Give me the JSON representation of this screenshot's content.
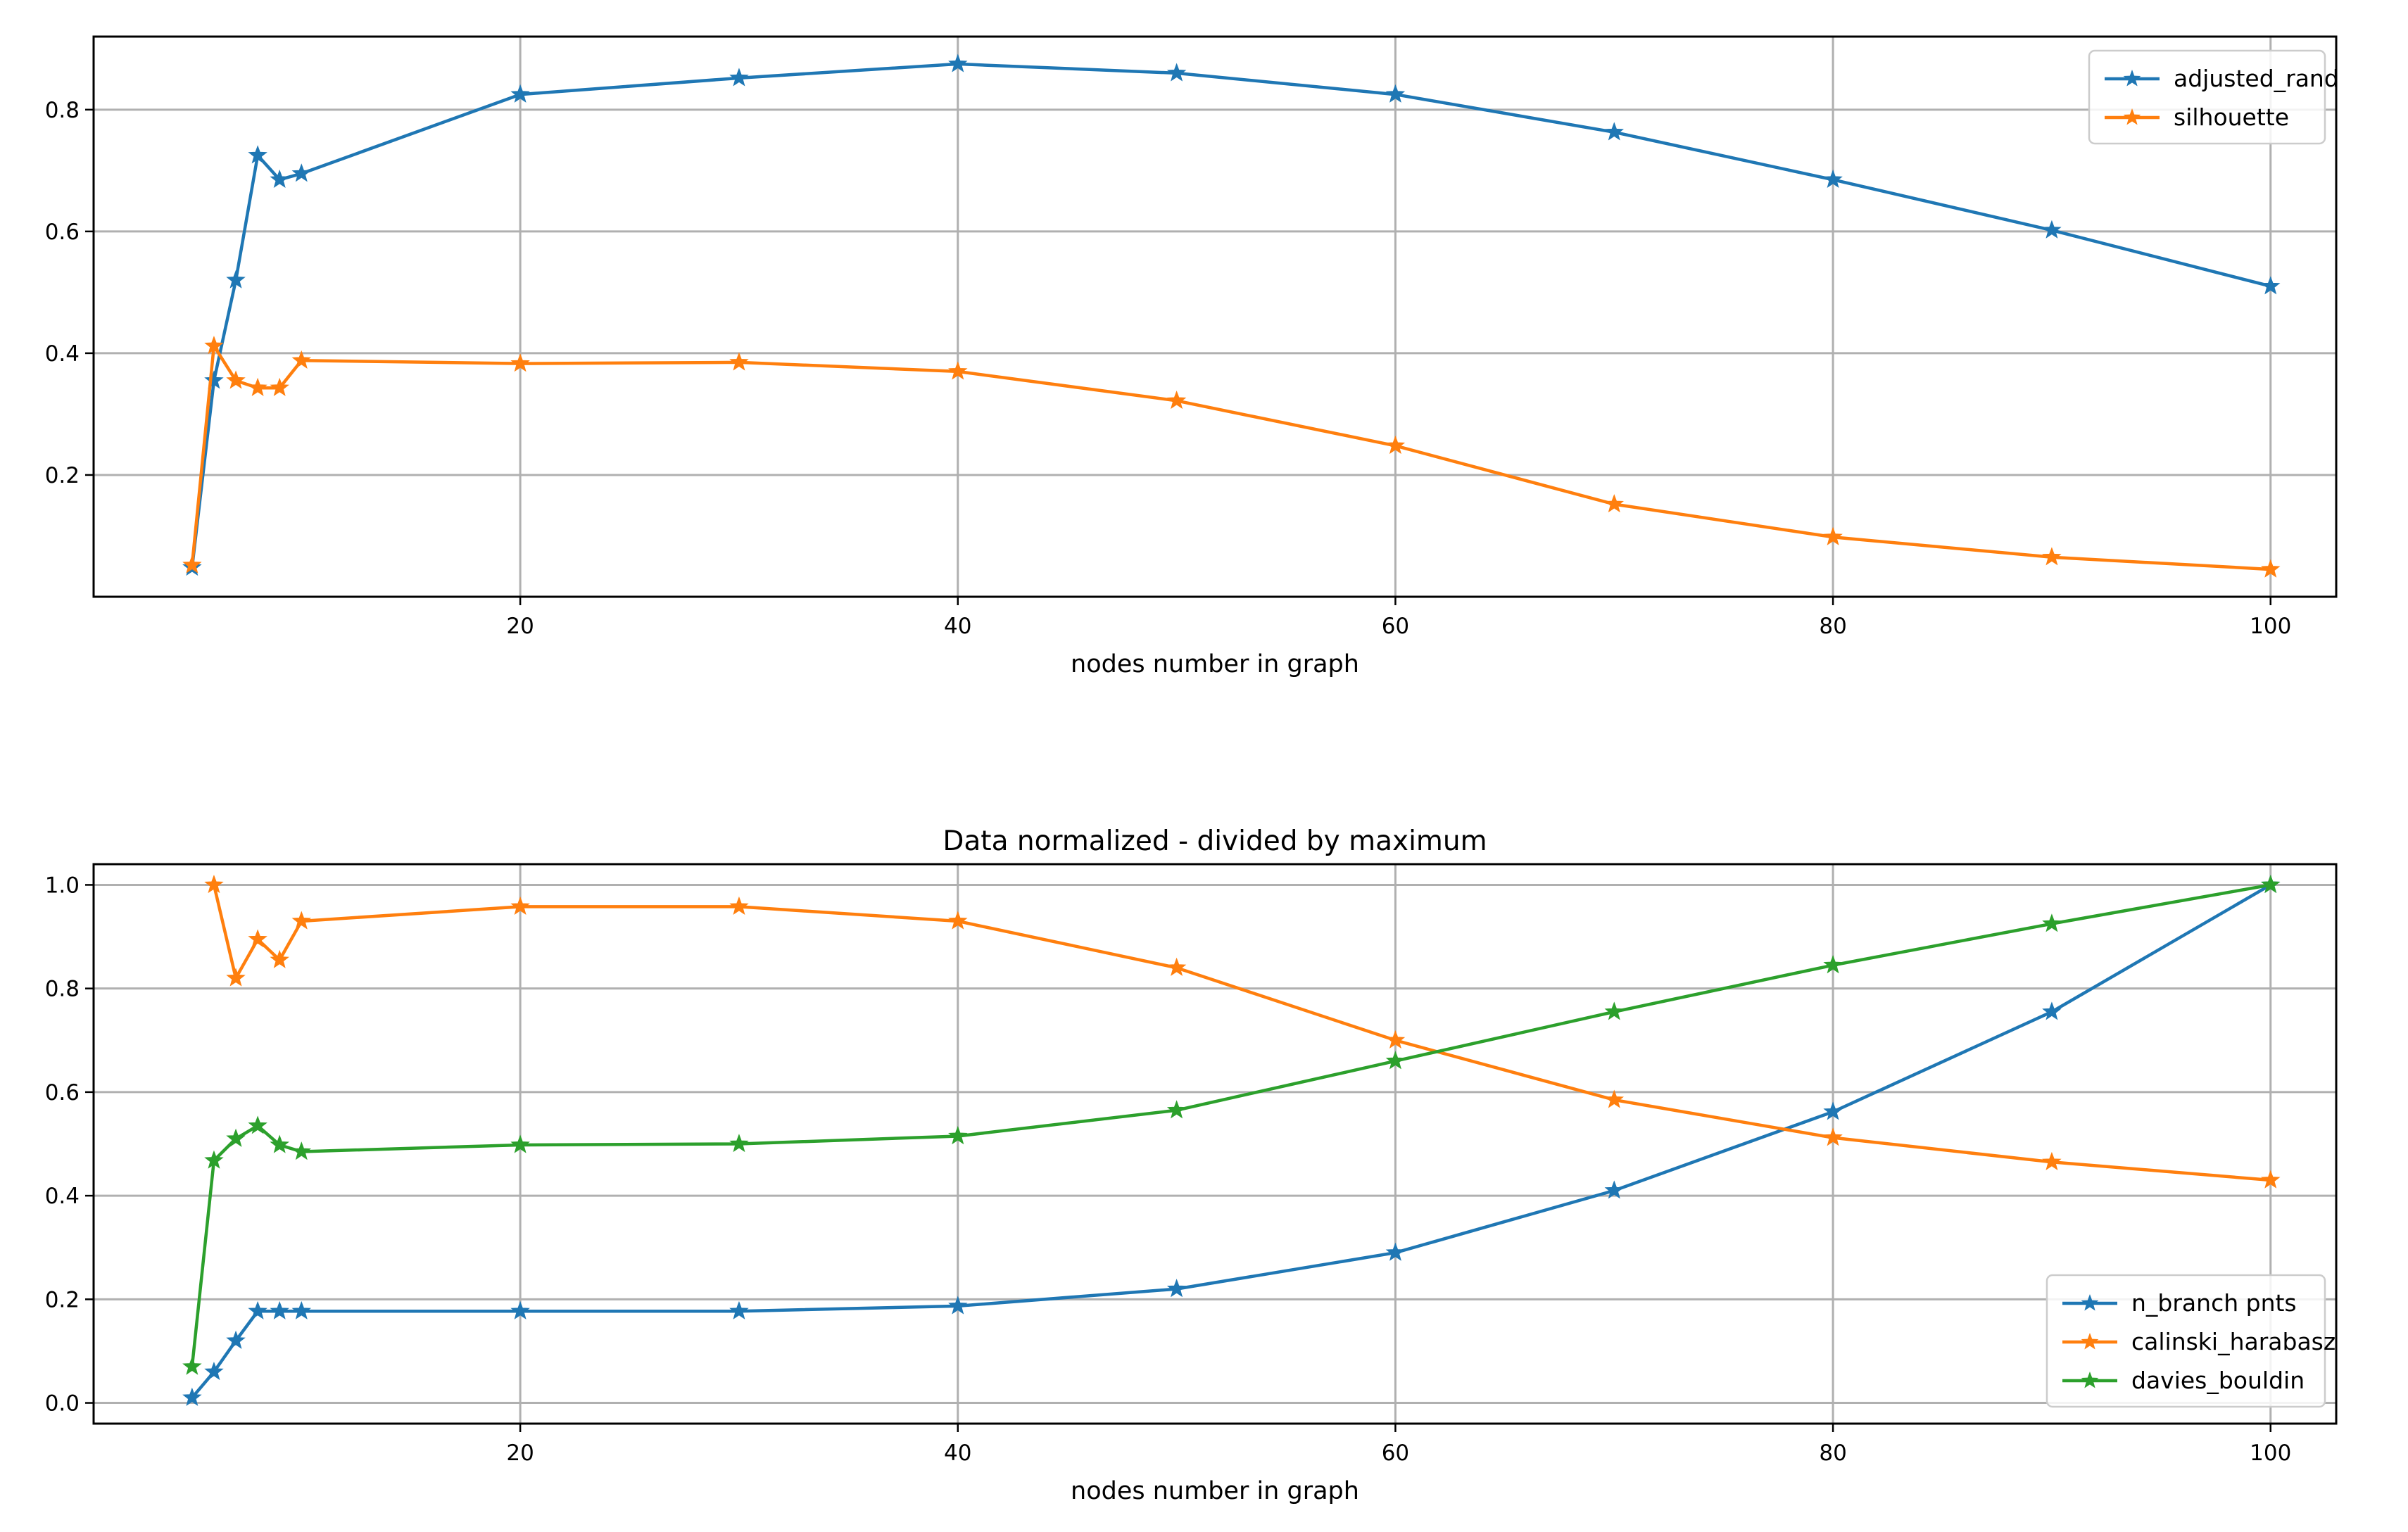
{
  "chart_data": [
    {
      "type": "line",
      "title": "",
      "xlabel": "nodes number in graph",
      "ylabel": "",
      "xlim": [
        0.5,
        103
      ],
      "ylim": [
        0.0,
        0.92
      ],
      "xticks": [
        20,
        40,
        60,
        80,
        100
      ],
      "yticks": [
        0.2,
        0.4,
        0.6,
        0.8
      ],
      "ytick_labels": [
        "0.2",
        "0.4",
        "0.6",
        "0.8"
      ],
      "grid": true,
      "legend": "top-right",
      "marker": "star",
      "x": [
        5,
        6,
        7,
        8,
        9,
        10,
        20,
        30,
        40,
        50,
        60,
        70,
        80,
        90,
        100
      ],
      "series": [
        {
          "name": "adjusted_rand",
          "color": "#1f77b4",
          "values": [
            0.048,
            0.355,
            0.52,
            0.725,
            0.685,
            0.695,
            0.825,
            0.852,
            0.875,
            0.86,
            0.825,
            0.763,
            0.685,
            0.602,
            0.51
          ]
        },
        {
          "name": "silhouette",
          "color": "#ff7f0e",
          "values": [
            0.052,
            0.412,
            0.355,
            0.343,
            0.343,
            0.388,
            0.383,
            0.385,
            0.37,
            0.322,
            0.248,
            0.152,
            0.098,
            0.065,
            0.045
          ]
        }
      ]
    },
    {
      "type": "line",
      "title": "Data normalized -  divided by maximum",
      "xlabel": "nodes number in graph",
      "ylabel": "",
      "xlim": [
        0.5,
        103
      ],
      "ylim": [
        -0.04,
        1.04
      ],
      "xticks": [
        20,
        40,
        60,
        80,
        100
      ],
      "yticks": [
        0.0,
        0.2,
        0.4,
        0.6,
        0.8,
        1.0
      ],
      "ytick_labels": [
        "0.0",
        "0.2",
        "0.4",
        "0.6",
        "0.8",
        "1.0"
      ],
      "grid": true,
      "legend": "lower-right",
      "marker": "star",
      "x": [
        5,
        6,
        7,
        8,
        9,
        10,
        20,
        30,
        40,
        50,
        60,
        70,
        80,
        90,
        100
      ],
      "series": [
        {
          "name": "n_branch pnts",
          "color": "#1f77b4",
          "values": [
            0.01,
            0.06,
            0.12,
            0.177,
            0.177,
            0.177,
            0.177,
            0.177,
            0.187,
            0.22,
            0.29,
            0.41,
            0.562,
            0.755,
            1.0
          ]
        },
        {
          "name": "calinski_harabasz",
          "color": "#ff7f0e",
          "values": [
            null,
            1.0,
            0.82,
            0.895,
            0.855,
            0.93,
            0.958,
            0.958,
            0.93,
            0.84,
            0.7,
            0.585,
            0.512,
            0.465,
            0.43
          ]
        },
        {
          "name": "davies_bouldin",
          "color": "#2ca02c",
          "values": [
            0.07,
            0.468,
            0.51,
            0.535,
            0.498,
            0.485,
            0.498,
            0.5,
            0.515,
            0.565,
            0.66,
            0.755,
            0.845,
            0.925,
            1.0
          ]
        }
      ]
    }
  ]
}
